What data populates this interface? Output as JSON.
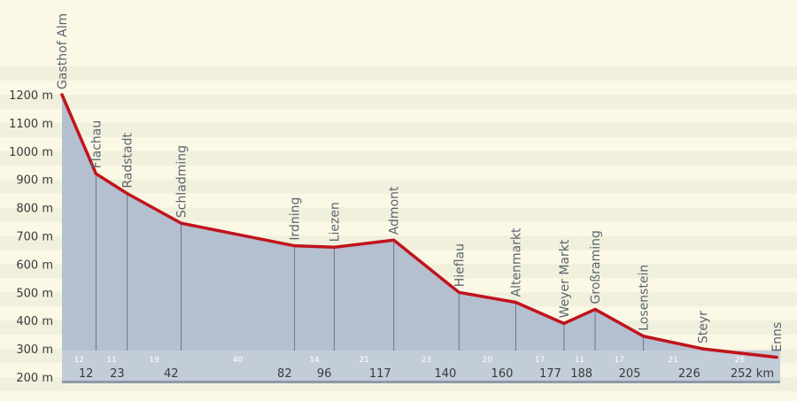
{
  "chart_data": {
    "type": "area",
    "title": "",
    "xlabel": "",
    "ylabel": "",
    "ylim": [
      200,
      1200
    ],
    "y_ticks": [
      {
        "value": 200,
        "label": "200 m"
      },
      {
        "value": 300,
        "label": "300 m"
      },
      {
        "value": 400,
        "label": "400 m"
      },
      {
        "value": 500,
        "label": "500 m"
      },
      {
        "value": 600,
        "label": "600 m"
      },
      {
        "value": 700,
        "label": "700 m"
      },
      {
        "value": 800,
        "label": "800 m"
      },
      {
        "value": 900,
        "label": "900 m"
      },
      {
        "value": 1000,
        "label": "1000 m"
      },
      {
        "value": 1100,
        "label": "1100 m"
      },
      {
        "value": 1200,
        "label": "1200 m"
      }
    ],
    "grid": true,
    "line_color": "#c0131c",
    "fill_color": "#b4bfd0",
    "points": [
      {
        "name": "Gasthof Alm",
        "km": 0,
        "km_label": "",
        "elevation": 1200
      },
      {
        "name": "Flachau",
        "km": 12,
        "km_label": "12",
        "elevation": 920
      },
      {
        "name": "Radstadt",
        "km": 23,
        "km_label": "23",
        "elevation": 850
      },
      {
        "name": "Schladming",
        "km": 42,
        "km_label": "42",
        "elevation": 745
      },
      {
        "name": "Irdning",
        "km": 82,
        "km_label": "82",
        "elevation": 665
      },
      {
        "name": "Liezen",
        "km": 96,
        "km_label": "96",
        "elevation": 660
      },
      {
        "name": "Admont",
        "km": 117,
        "km_label": "117",
        "elevation": 685
      },
      {
        "name": "Hieflau",
        "km": 140,
        "km_label": "140",
        "elevation": 500
      },
      {
        "name": "Altenmarkt",
        "km": 160,
        "km_label": "160",
        "elevation": 465
      },
      {
        "name": "Weyer Markt",
        "km": 177,
        "km_label": "177",
        "elevation": 390
      },
      {
        "name": "Großraming",
        "km": 188,
        "km_label": "188",
        "elevation": 440
      },
      {
        "name": "Losenstein",
        "km": 205,
        "km_label": "205",
        "elevation": 345
      },
      {
        "name": "Steyr",
        "km": 226,
        "km_label": "226",
        "elevation": 300
      },
      {
        "name": "Enns",
        "km": 252,
        "km_label": "252 km",
        "elevation": 270
      }
    ],
    "segments": [
      "12",
      "11",
      "19",
      "40",
      "14",
      "21",
      "23",
      "20",
      "17",
      "11",
      "17",
      "21",
      "26"
    ]
  }
}
